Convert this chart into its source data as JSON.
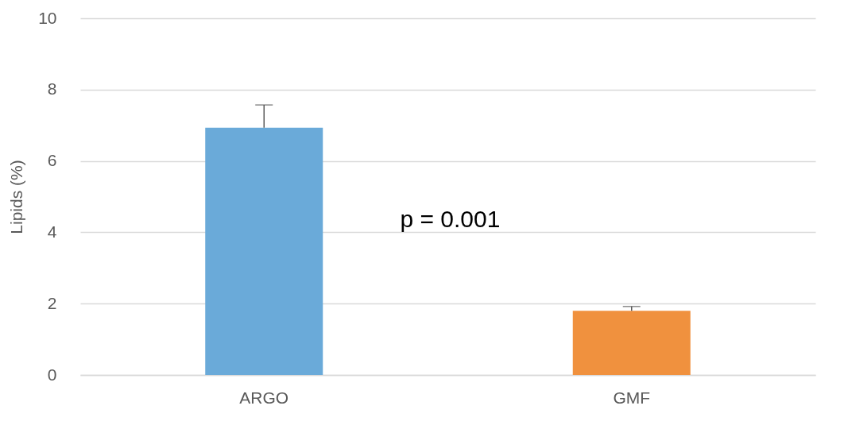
{
  "chart_data": {
    "type": "bar",
    "ylabel": "Lipids (%)",
    "categories": [
      "ARGO",
      "GMF"
    ],
    "values": [
      6.93,
      1.8
    ],
    "colors": [
      "#6aaad9",
      "#f0913e"
    ],
    "errors": [
      [
        6.93,
        7.57
      ],
      [
        1.8,
        1.92
      ]
    ],
    "ylim": [
      0,
      10
    ],
    "yticks": [
      0,
      2,
      4,
      6,
      8,
      10
    ],
    "grid": "y",
    "annotations": [
      "p = 0.001"
    ]
  }
}
